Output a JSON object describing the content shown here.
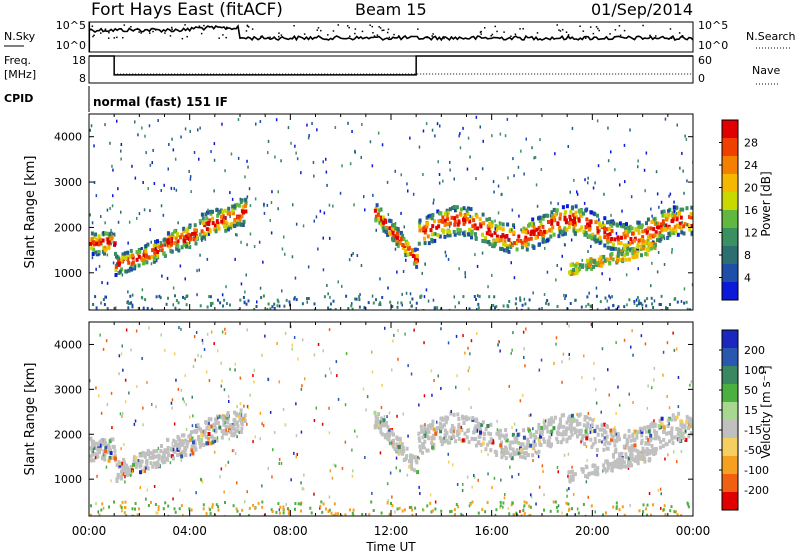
{
  "header": {
    "station": "Fort Hays East (fitACF)",
    "beam": "Beam 15",
    "date": "01/Sep/2014"
  },
  "strip": {
    "nsky_label": "N.Sky",
    "nsky_ticks": [
      "10^5",
      "10^0"
    ],
    "nsearch_label": "N.Search",
    "nsearch_ticks": [
      "10^5",
      "10^0"
    ],
    "freq_label": "Freq.",
    "freq_unit": "[MHz]",
    "freq_ticks": [
      "18",
      "8"
    ],
    "nave_label": "Nave",
    "nave_ticks": [
      "60",
      "0"
    ],
    "cpid_label": "CPID",
    "cpid_text": "normal (fast) 151 IF"
  },
  "panels": {
    "ylabel": "Slant Range [km]",
    "yticks": [
      "4000",
      "3000",
      "2000",
      "1000"
    ],
    "xticks": [
      "00:00",
      "04:00",
      "08:00",
      "12:00",
      "16:00",
      "20:00",
      "00:00"
    ],
    "xlabel": "Time UT"
  },
  "power_bar": {
    "title": "Power [dB]",
    "labels": [
      "28",
      "24",
      "20",
      "16",
      "12",
      "8",
      "4"
    ],
    "colors": [
      "#e00000",
      "#f04000",
      "#f58000",
      "#f5b800",
      "#c8d800",
      "#60b840",
      "#3a9060",
      "#2d6e70",
      "#1e4ea8",
      "#0a1ad8"
    ]
  },
  "velocity_bar": {
    "title": "Velocity [m s⁻¹]",
    "labels": [
      "200",
      "100",
      "50",
      "15",
      "-15",
      "-50",
      "-100",
      "-200"
    ],
    "colors": [
      "#1a28c0",
      "#2a58b0",
      "#3a8860",
      "#4ab040",
      "#a8d890",
      "#c0c0c0",
      "#f5d060",
      "#f5a020",
      "#f06010",
      "#e00000"
    ]
  },
  "chart_data": [
    {
      "type": "line",
      "title": "Fort Hays East (fitACF)",
      "x": [
        "00:00",
        "04:00",
        "08:00",
        "12:00",
        "16:00",
        "20:00",
        "00:00"
      ],
      "series": [
        {
          "name": "Freq.",
          "values": [
            18,
            11,
            11,
            11,
            18,
            18,
            18
          ]
        },
        {
          "name": "Nave",
          "values": [
            15,
            15,
            15,
            15,
            15,
            15,
            15
          ]
        }
      ],
      "ylabel": "[MHz]",
      "ylim": [
        8,
        18
      ]
    },
    {
      "type": "heatmap",
      "title": "Power [dB]",
      "xlabel": "Time UT",
      "ylabel": "Slant Range [km]",
      "xlim": [
        "00:00",
        "00:00"
      ],
      "ylim": [
        180,
        4500
      ],
      "colorbar": [
        4,
        8,
        12,
        16,
        20,
        24,
        28
      ]
    },
    {
      "type": "heatmap",
      "title": "Velocity [m s⁻¹]",
      "xlabel": "Time UT",
      "ylabel": "Slant Range [km]",
      "xlim": [
        "00:00",
        "00:00"
      ],
      "ylim": [
        180,
        4500
      ],
      "colorbar": [
        -200,
        -100,
        -50,
        -15,
        15,
        50,
        100,
        200
      ]
    }
  ]
}
